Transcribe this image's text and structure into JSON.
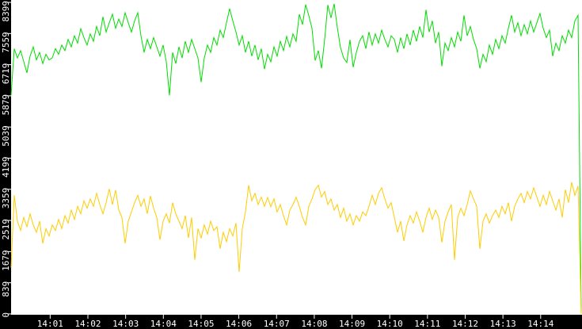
{
  "chart_data": {
    "type": "line",
    "title": "",
    "grid": false,
    "legend": "none",
    "background": {
      "margin": "#000000",
      "plot": "#ffffff"
    },
    "y_axis": {
      "min": 0,
      "max": 8399,
      "tick_labels": [
        "0",
        "839",
        "1679",
        "2519",
        "3359",
        "4199",
        "5039",
        "5879",
        "6719",
        "7559",
        "8399"
      ],
      "text_color": "#ffffff",
      "tick_color": "#ffffff"
    },
    "x_axis": {
      "start": "14:00",
      "end": "14:15",
      "tick_labels": [
        "14:01",
        "14:02",
        "14:03",
        "14:04",
        "14:05",
        "14:06",
        "14:07",
        "14:08",
        "14:09",
        "14:10",
        "14:11",
        "14:12",
        "14:13",
        "14:14"
      ],
      "text_color": "#ffffff",
      "tick_color": "#ffffff"
    },
    "series": [
      {
        "name": "green",
        "color": "#00dd00",
        "values": [
          5900,
          7150,
          6900,
          7100,
          6800,
          6500,
          6950,
          7200,
          6850,
          7050,
          6750,
          7000,
          6850,
          6900,
          7150,
          7000,
          7250,
          7100,
          7400,
          7200,
          7500,
          7300,
          7690,
          7450,
          7250,
          7550,
          7350,
          7750,
          7500,
          8010,
          7600,
          7850,
          8080,
          7700,
          7950,
          7750,
          8120,
          7850,
          7600,
          7900,
          8120,
          7500,
          7050,
          7400,
          7150,
          7450,
          7200,
          6950,
          7250,
          6800,
          5890,
          7050,
          6750,
          7200,
          6900,
          7350,
          7050,
          7400,
          7150,
          6900,
          6250,
          6900,
          7250,
          7050,
          7450,
          7250,
          7650,
          7450,
          7850,
          8230,
          7900,
          7600,
          7250,
          7500,
          7050,
          7350,
          6950,
          7250,
          6850,
          7150,
          6600,
          7000,
          6800,
          7200,
          6950,
          7350,
          7100,
          7480,
          7200,
          7550,
          7350,
          8080,
          7800,
          8340,
          8040,
          7700,
          6830,
          7100,
          6620,
          7400,
          8330,
          7980,
          8360,
          7720,
          7180,
          6900,
          6780,
          7390,
          6650,
          7050,
          7350,
          7500,
          7150,
          7600,
          7250,
          7550,
          7300,
          7650,
          7400,
          7200,
          7500,
          7400,
          7050,
          7450,
          7150,
          7550,
          7250,
          7650,
          7350,
          7750,
          7450,
          8200,
          7600,
          7900,
          7300,
          7600,
          6680,
          7300,
          7100,
          7450,
          7200,
          7600,
          7350,
          8050,
          7500,
          7750,
          7400,
          7150,
          6620,
          7000,
          6800,
          7250,
          7000,
          7400,
          7150,
          7500,
          7300,
          7700,
          8050,
          7600,
          7850,
          7500,
          7800,
          7550,
          7900,
          7600,
          7850,
          8100,
          7700,
          7450,
          7650,
          6950,
          7300,
          7100,
          7500,
          7300,
          7650,
          7450,
          7900,
          8050,
          0
        ]
      },
      {
        "name": "yellow",
        "color": "#ffcc00",
        "values": [
          1250,
          3200,
          2500,
          2250,
          2600,
          2350,
          2700,
          2400,
          2200,
          2500,
          1900,
          2300,
          2100,
          2400,
          2250,
          2550,
          2300,
          2650,
          2450,
          2800,
          2550,
          2900,
          2700,
          3050,
          2850,
          3100,
          2900,
          3250,
          2950,
          2700,
          3000,
          3370,
          2950,
          3340,
          2800,
          2600,
          1900,
          2500,
          2750,
          3000,
          3200,
          2900,
          3100,
          2700,
          3180,
          2850,
          2600,
          2000,
          2500,
          2700,
          2450,
          3000,
          2700,
          2500,
          2300,
          2650,
          2050,
          2600,
          1460,
          2300,
          2050,
          2400,
          2150,
          2500,
          2250,
          2350,
          1760,
          2200,
          1950,
          2300,
          2100,
          2450,
          1130,
          2300,
          2750,
          3470,
          3050,
          3250,
          2950,
          3150,
          2900,
          3140,
          2890,
          3100,
          2750,
          2950,
          2650,
          2400,
          2800,
          2950,
          3150,
          2900,
          2600,
          2400,
          2900,
          3100,
          3350,
          3470,
          3150,
          3300,
          2950,
          3100,
          2800,
          2950,
          2600,
          2850,
          2500,
          2700,
          2400,
          2650,
          2500,
          2750,
          2650,
          2900,
          3200,
          2950,
          3250,
          3400,
          3100,
          2850,
          3000,
          2600,
          2200,
          2500,
          1970,
          2400,
          2650,
          2450,
          2750,
          2500,
          2200,
          2600,
          2850,
          2550,
          2800,
          2600,
          1930,
          2500,
          2750,
          2950,
          1460,
          2600,
          2850,
          2650,
          2950,
          3320,
          3100,
          2900,
          1755,
          2500,
          2700,
          2450,
          2650,
          2800,
          2600,
          2900,
          2700,
          3000,
          2500,
          2900,
          3100,
          3250,
          3000,
          3300,
          3100,
          3400,
          3150,
          2900,
          3200,
          2950,
          3300,
          3050,
          2800,
          3100,
          2600,
          3350,
          3000,
          3550,
          3200,
          3450,
          0
        ]
      }
    ]
  }
}
